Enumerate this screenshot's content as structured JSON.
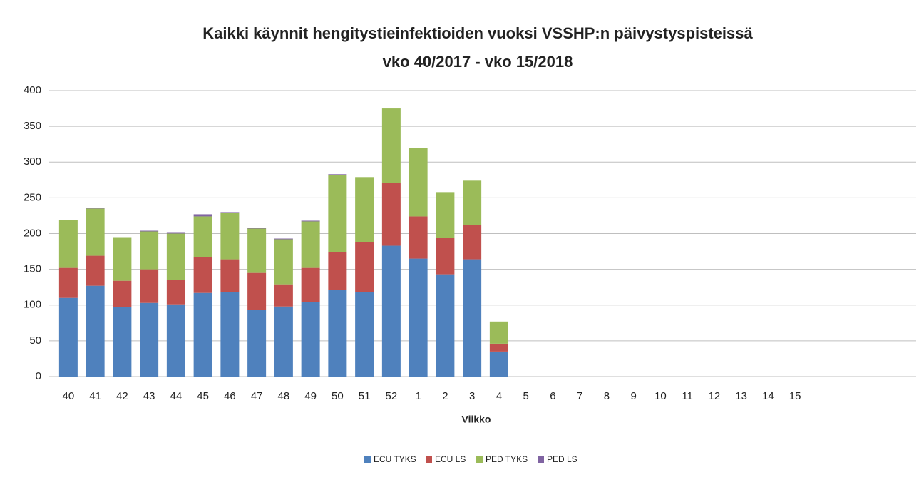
{
  "chart_data": {
    "type": "stacked_bar",
    "title": "Kaikki käynnit hengitystieinfektioiden vuoksi VSSHP:n päivystyspisteissä",
    "subtitle": "vko 40/2017 - vko 15/2018",
    "x_label": "Viikko",
    "categories": [
      "40",
      "41",
      "42",
      "43",
      "44",
      "45",
      "46",
      "47",
      "48",
      "49",
      "50",
      "51",
      "52",
      "1",
      "2",
      "3",
      "4",
      "5",
      "6",
      "7",
      "8",
      "9",
      "10",
      "11",
      "12",
      "13",
      "14",
      "15",
      null,
      null,
      null,
      null
    ],
    "series": [
      {
        "name": "ECU TYKS",
        "color": "#4f81bd",
        "values": [
          110,
          127,
          97,
          103,
          101,
          117,
          118,
          93,
          98,
          104,
          121,
          118,
          183,
          165,
          143,
          164,
          35,
          null,
          null,
          null,
          null,
          null,
          null,
          null,
          null,
          null,
          null,
          null,
          null,
          null,
          null,
          null
        ]
      },
      {
        "name": "ECU LS",
        "color": "#c0504d",
        "values": [
          42,
          42,
          37,
          47,
          34,
          50,
          46,
          52,
          31,
          48,
          53,
          70,
          88,
          59,
          51,
          48,
          11,
          null,
          null,
          null,
          null,
          null,
          null,
          null,
          null,
          null,
          null,
          null,
          null,
          null,
          null,
          null
        ]
      },
      {
        "name": "PED TYKS",
        "color": "#9bbb59",
        "values": [
          67,
          66,
          61,
          53,
          65,
          57,
          65,
          62,
          63,
          65,
          108,
          91,
          104,
          96,
          64,
          62,
          31,
          null,
          null,
          null,
          null,
          null,
          null,
          null,
          null,
          null,
          null,
          null,
          null,
          null,
          null,
          null
        ]
      },
      {
        "name": "PED LS",
        "color": "#8064a2",
        "values": [
          0,
          1,
          0,
          1,
          2,
          3,
          1,
          1,
          1,
          1,
          1,
          0,
          0,
          0,
          0,
          0,
          0,
          null,
          null,
          null,
          null,
          null,
          null,
          null,
          null,
          null,
          null,
          null,
          null,
          null,
          null,
          null
        ]
      }
    ],
    "ylim": [
      0,
      400
    ],
    "yticks": [
      0,
      50,
      100,
      150,
      200,
      250,
      300,
      350,
      400
    ],
    "grid": true,
    "legend": "bottom"
  }
}
